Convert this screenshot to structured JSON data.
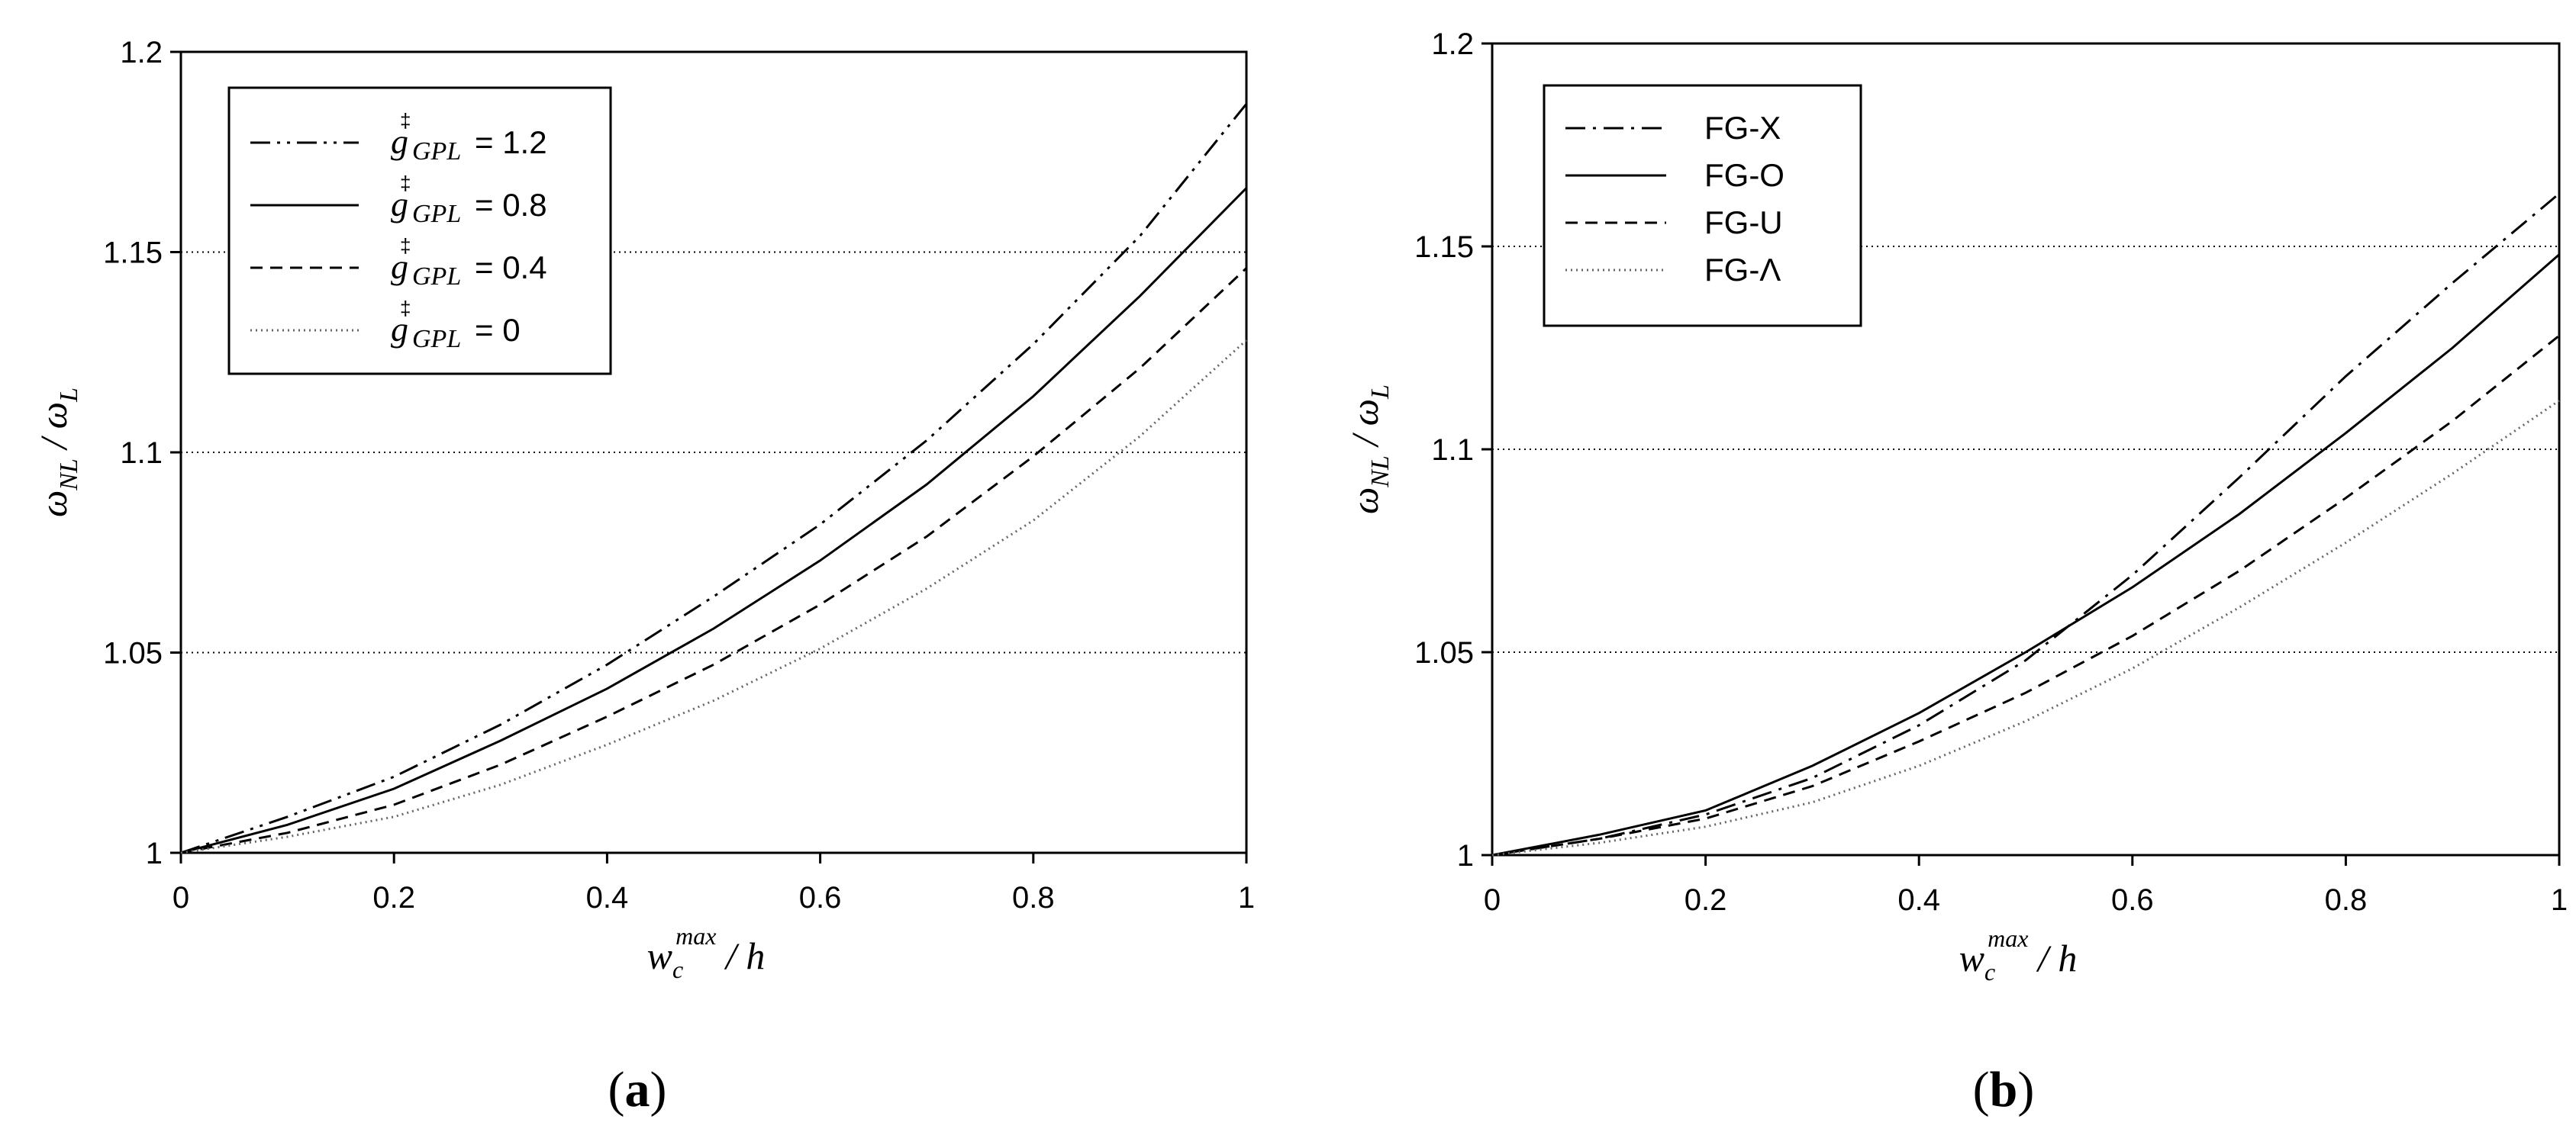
{
  "chart_data": [
    {
      "type": "line",
      "panel": "a",
      "caption": "(a)",
      "xlabel": "w_c^max / h",
      "ylabel": "ω_NL / ω_L",
      "xlim": [
        0,
        1
      ],
      "ylim": [
        1,
        1.2
      ],
      "xticks": [
        "0",
        "0.2",
        "0.4",
        "0.6",
        "0.8",
        "1"
      ],
      "yticks": [
        "1",
        "1.05",
        "1.1",
        "1.15",
        "1.2"
      ],
      "grid": "horizontal dotted",
      "legend_position": "top-left",
      "x": [
        0,
        0.1,
        0.2,
        0.3,
        0.4,
        0.5,
        0.6,
        0.7,
        0.8,
        0.9,
        1.0
      ],
      "series": [
        {
          "name": "g_GPL = 1.2",
          "legend_text": "= 1.2",
          "style": "dash-dot-dot",
          "values": [
            1.0,
            1.009,
            1.019,
            1.032,
            1.047,
            1.064,
            1.082,
            1.103,
            1.127,
            1.154,
            1.187
          ]
        },
        {
          "name": "g_GPL = 0.8",
          "legend_text": "= 0.8",
          "style": "solid",
          "values": [
            1.0,
            1.007,
            1.016,
            1.028,
            1.041,
            1.056,
            1.073,
            1.092,
            1.114,
            1.139,
            1.166
          ]
        },
        {
          "name": "g_GPL = 0.4",
          "legend_text": "= 0.4",
          "style": "dashed",
          "values": [
            1.0,
            1.005,
            1.012,
            1.022,
            1.034,
            1.047,
            1.062,
            1.079,
            1.099,
            1.121,
            1.146
          ]
        },
        {
          "name": "g_GPL = 0",
          "legend_text": "= 0",
          "style": "dotted",
          "values": [
            1.0,
            1.004,
            1.009,
            1.017,
            1.027,
            1.038,
            1.051,
            1.066,
            1.083,
            1.104,
            1.128
          ]
        }
      ]
    },
    {
      "type": "line",
      "panel": "b",
      "caption": "(b)",
      "xlabel": "w_c^max / h",
      "ylabel": "ω_NL / ω_L",
      "xlim": [
        0,
        1
      ],
      "ylim": [
        1,
        1.2
      ],
      "xticks": [
        "0",
        "0.2",
        "0.4",
        "0.6",
        "0.8",
        "1"
      ],
      "yticks": [
        "1",
        "1.05",
        "1.1",
        "1.15",
        "1.2"
      ],
      "grid": "horizontal dotted",
      "legend_position": "top-left",
      "x": [
        0,
        0.1,
        0.2,
        0.3,
        0.4,
        0.5,
        0.6,
        0.7,
        0.8,
        0.9,
        1.0
      ],
      "series": [
        {
          "name": "FG-X",
          "legend_text": "FG-X",
          "style": "dash-dot",
          "values": [
            1.0,
            1.004,
            1.01,
            1.019,
            1.032,
            1.048,
            1.069,
            1.093,
            1.118,
            1.141,
            1.163
          ]
        },
        {
          "name": "FG-O",
          "legend_text": "FG-O",
          "style": "solid",
          "values": [
            1.0,
            1.005,
            1.011,
            1.022,
            1.035,
            1.05,
            1.066,
            1.084,
            1.104,
            1.125,
            1.148
          ]
        },
        {
          "name": "FG-U",
          "legend_text": "FG-U",
          "style": "dashed",
          "values": [
            1.0,
            1.004,
            1.009,
            1.017,
            1.028,
            1.04,
            1.054,
            1.07,
            1.088,
            1.107,
            1.128
          ]
        },
        {
          "name": "FG-Λ",
          "legend_text": "FG-Λ",
          "style": "dotted",
          "values": [
            1.0,
            1.003,
            1.007,
            1.013,
            1.022,
            1.033,
            1.046,
            1.061,
            1.077,
            1.094,
            1.112
          ]
        }
      ]
    }
  ]
}
